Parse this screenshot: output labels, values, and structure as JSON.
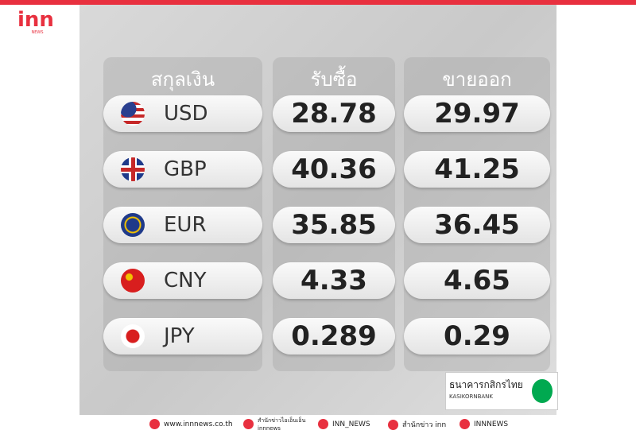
{
  "header": {
    "logo": "inn",
    "logo_sub": "NEWS"
  },
  "table": {
    "columns": [
      "สกุลเงิน",
      "รับซื้อ",
      "ขายออก"
    ],
    "rows": [
      [
        "USD",
        "28.78",
        "29.97"
      ],
      [
        "GBP",
        "40.36",
        "41.25"
      ],
      [
        "EUR",
        "35.85",
        "36.45"
      ],
      [
        "CNY",
        "4.33",
        "4.65"
      ],
      [
        "JPY",
        "0.289",
        "0.29"
      ]
    ]
  },
  "bank": {
    "name_th": "ธนาคารกสิกรไทย",
    "name_en": "KASIKORNBANK"
  },
  "footer": {
    "website": "www.innnews.co.th",
    "facebook": "สำนักข่าวไอเอ็นเอ็น",
    "facebook_sub": "innnews",
    "tiktok": "INN_NEWS",
    "twitter": "สำนักข่าว inn",
    "youtube": "INNNEWS"
  }
}
